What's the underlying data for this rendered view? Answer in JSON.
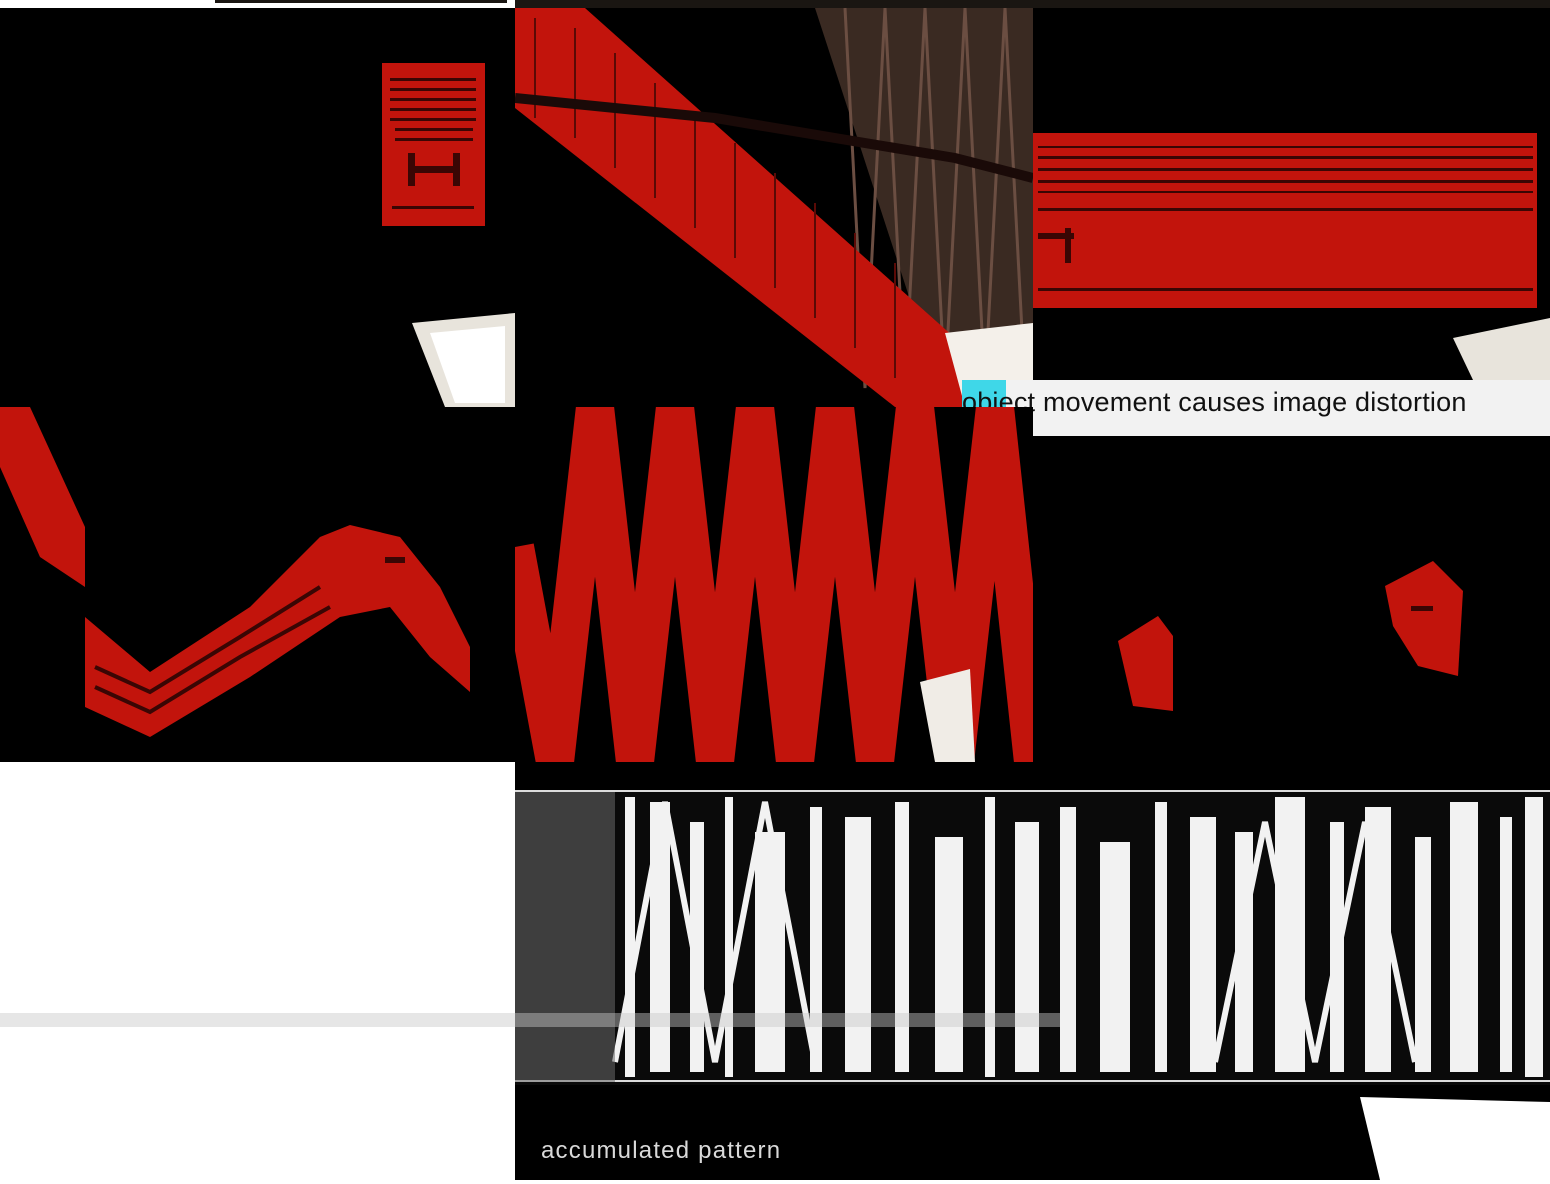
{
  "captions": {
    "distortion": "object movement causes image distortion",
    "pattern": "accumulated pattern"
  },
  "colors": {
    "background": "#000000",
    "chart_red": "#c2140c",
    "page": "#ffffff",
    "caption_bg": "#f2f2f2",
    "cyan_marker": "#3fd7e8"
  }
}
